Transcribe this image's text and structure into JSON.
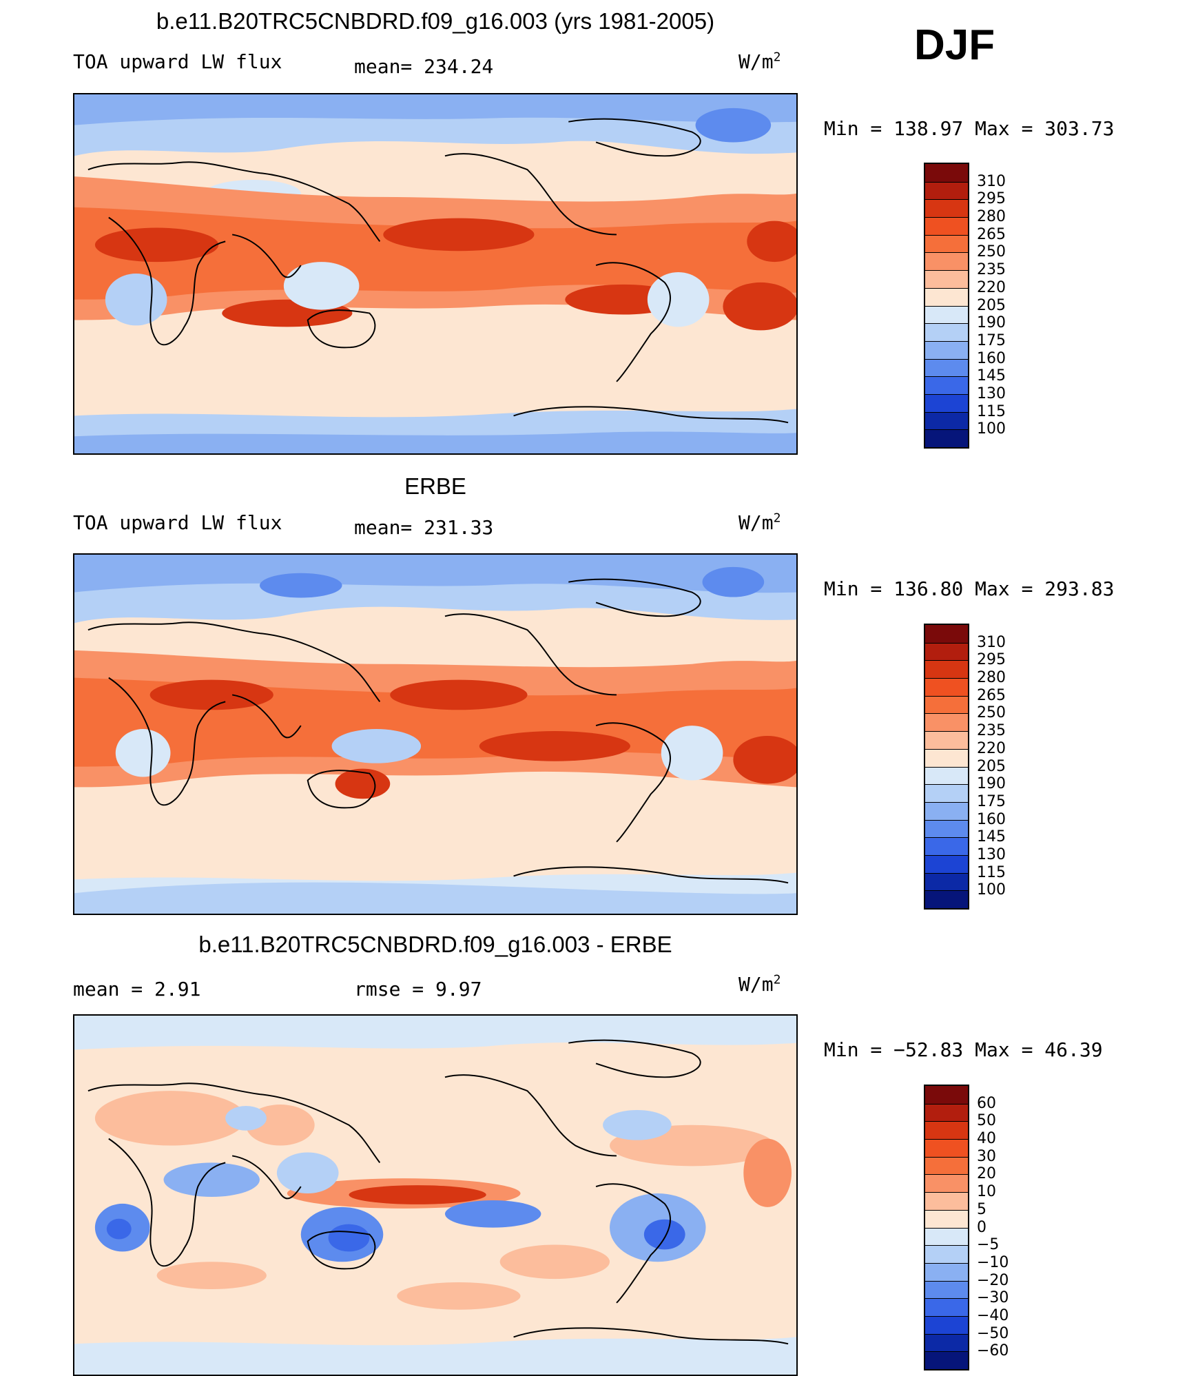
{
  "season": "DJF",
  "panels": [
    {
      "id": "model",
      "title": "b.e11.B20TRC5CNBDRD.f09_g16.003 (yrs 1981-2005)",
      "left_label": "TOA upward LW flux",
      "center_label": "mean=  234.24",
      "units": "W/m",
      "units_sup": "2",
      "minmax": "Min  =  138.97  Max  =  303.73",
      "colorbar": {
        "labels": [
          "310",
          "295",
          "280",
          "265",
          "250",
          "235",
          "220",
          "205",
          "190",
          "175",
          "160",
          "145",
          "130",
          "115",
          "100"
        ],
        "colors": [
          "#7a0a0a",
          "#b21e0e",
          "#d73612",
          "#ef5121",
          "#f56f3a",
          "#f99166",
          "#fcbd9c",
          "#fde6d2",
          "#d8e8f8",
          "#b4d0f6",
          "#8ab0f2",
          "#5d8bee",
          "#3a68e8",
          "#1c44d4",
          "#0c29a6",
          "#06157a"
        ]
      }
    },
    {
      "id": "obs",
      "title": "ERBE",
      "left_label": "TOA upward LW flux",
      "center_label": "mean=  231.33",
      "units": "W/m",
      "units_sup": "2",
      "minmax": "Min  =  136.80  Max  =  293.83",
      "colorbar": {
        "labels": [
          "310",
          "295",
          "280",
          "265",
          "250",
          "235",
          "220",
          "205",
          "190",
          "175",
          "160",
          "145",
          "130",
          "115",
          "100"
        ],
        "colors": [
          "#7a0a0a",
          "#b21e0e",
          "#d73612",
          "#ef5121",
          "#f56f3a",
          "#f99166",
          "#fcbd9c",
          "#fde6d2",
          "#d8e8f8",
          "#b4d0f6",
          "#8ab0f2",
          "#5d8bee",
          "#3a68e8",
          "#1c44d4",
          "#0c29a6",
          "#06157a"
        ]
      }
    },
    {
      "id": "diff",
      "title": "b.e11.B20TRC5CNBDRD.f09_g16.003 - ERBE",
      "left_label": "mean  =     2.91",
      "center_label": "rmse  =     9.97",
      "units": "W/m",
      "units_sup": "2",
      "minmax": "Min  =  −52.83  Max  =    46.39",
      "colorbar": {
        "labels": [
          "60",
          "50",
          "40",
          "30",
          "20",
          "10",
          "5",
          "0",
          "−5",
          "−10",
          "−20",
          "−30",
          "−40",
          "−50",
          "−60"
        ],
        "colors": [
          "#7a0a0a",
          "#b21e0e",
          "#d73612",
          "#ef5121",
          "#f56f3a",
          "#f99166",
          "#fcbd9c",
          "#fde6d2",
          "#d8e8f8",
          "#b4d0f6",
          "#8ab0f2",
          "#5d8bee",
          "#3a68e8",
          "#1c44d4",
          "#0c29a6",
          "#06157a"
        ]
      }
    }
  ]
}
